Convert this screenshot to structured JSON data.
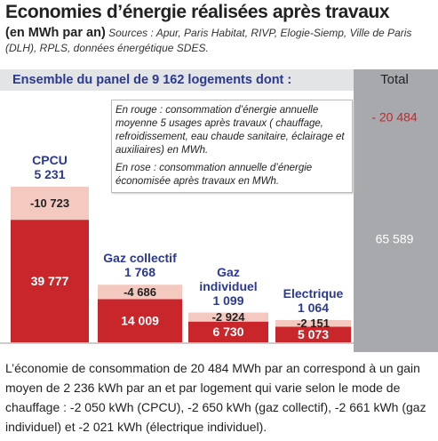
{
  "chart_data": {
    "type": "bar",
    "title": "Economies d’énergie réalisées après travaux",
    "subtitle": "(en MWh par an)",
    "source": "Sources : Apur, Paris Habitat, RIVP, Elogie-Siemp, Ville de Paris (DLH), RPLS, données énergétique SDES.",
    "panel_label": "Ensemble du panel de 9 162 logements dont :",
    "notes": [
      "En rouge : consommation d’énergie annuelle moyenne 5 usages après travaux ( chauffage, refroidissement, eau chaude sanitaire, éclairage et auxiliaires) en MWh.",
      "En rose : consommation annuelle d’énergie économisée après travaux en MWh."
    ],
    "categories": [
      "CPCU",
      "Gaz collectif",
      "Gaz individuel",
      "Electrique"
    ],
    "counts": [
      5231,
      1768,
      1099,
      1064
    ],
    "count_labels": [
      "5 231",
      "1 768",
      "1 099",
      "1 064"
    ],
    "series": [
      {
        "color": "#c8262a",
        "values": [
          39777,
          14009,
          6730,
          5073
        ],
        "value_labels": [
          "39 777",
          "14 009",
          "6 730",
          "5 073"
        ]
      },
      {
        "color": "#f4c9c0",
        "values": [
          -10723,
          -4686,
          -2924,
          -2151
        ],
        "value_labels": [
          "-10 723",
          "-4 686",
          "-2 924",
          "-2 151"
        ]
      }
    ],
    "total": {
      "label": "Total",
      "values": [
        -20484,
        65589
      ],
      "value_labels": [
        "- 20 484",
        "65 589"
      ]
    },
    "footnote": "L’économie de consommation de 20 484 MWh par an correspond à un gain moyen de 2 236 kWh par an et par logement qui varie selon le mode de chauffage : -2 050 kWh (CPCU), -2 650 kWh (gaz collectif), -2 661 kWh (gaz individuel) et -2 021 kWh (électrique individuel)."
  }
}
